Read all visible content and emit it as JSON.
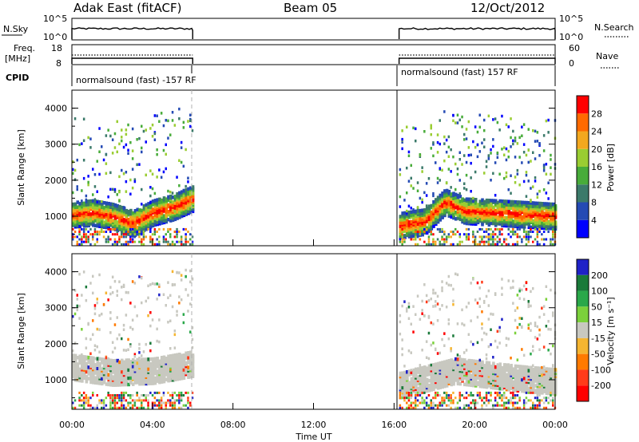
{
  "header": {
    "station": "Adak East (fitACF)",
    "beam": "Beam 05",
    "date": "12/Oct/2012"
  },
  "top_panels": {
    "nsky_label": "N.Sky",
    "nsky_ticks": [
      "10^5",
      "10^0"
    ],
    "nsearch_label": "N.Search",
    "nsearch_ticks": [
      "10^5",
      "10^0"
    ],
    "freq_label": "Freq.",
    "freq_unit": "[MHz]",
    "freq_ticks": [
      "18",
      "8"
    ],
    "nave_label": "Nave",
    "nave_ticks": [
      "60",
      "0"
    ],
    "cpid_label": "CPID",
    "cpid_segments": [
      {
        "text": "normalsound (fast) -157 RF",
        "start_h": 0,
        "end_h": 6
      },
      {
        "text": "normalsound (fast) 157 RF",
        "start_h": 16.25,
        "end_h": 24
      }
    ]
  },
  "x_axis": {
    "label": "Time UT",
    "ticks": [
      "00:00",
      "04:00",
      "08:00",
      "12:00",
      "16:00",
      "20:00",
      "00:00"
    ]
  },
  "chart_data": [
    {
      "type": "heatmap",
      "ylabel": "Slant Range [km]",
      "y_ticks": [
        "1000",
        "2000",
        "3000",
        "4000"
      ],
      "ylim": [
        180,
        4500
      ],
      "xlim": [
        0,
        24
      ],
      "data_windows_hours": [
        [
          0,
          6
        ],
        [
          16.25,
          24
        ]
      ],
      "colorbar": {
        "label": "Power [dB]",
        "ticks": [
          "4",
          "8",
          "12",
          "16",
          "20",
          "24",
          "28"
        ],
        "colors": [
          "#0000ff",
          "#244ab4",
          "#3b7a6a",
          "#48ac3a",
          "#9acd32",
          "#f3a81f",
          "#ff6a00",
          "#ff0000"
        ]
      },
      "backscatter_band": [
        {
          "hour": 0.0,
          "range_km": 1100
        },
        {
          "hour": 1.0,
          "range_km": 1150
        },
        {
          "hour": 2.0,
          "range_km": 1050
        },
        {
          "hour": 3.0,
          "range_km": 850
        },
        {
          "hour": 4.0,
          "range_km": 1150
        },
        {
          "hour": 5.0,
          "range_km": 1300
        },
        {
          "hour": 6.0,
          "range_km": 1550
        },
        {
          "hour": 16.3,
          "range_km": 800
        },
        {
          "hour": 17.5,
          "range_km": 900
        },
        {
          "hour": 18.5,
          "range_km": 1450
        },
        {
          "hour": 19.5,
          "range_km": 1200
        },
        {
          "hour": 21.0,
          "range_km": 1150
        },
        {
          "hour": 22.5,
          "range_km": 1100
        },
        {
          "hour": 24.0,
          "range_km": 1050
        }
      ]
    },
    {
      "type": "heatmap",
      "ylabel": "Slant Range [km]",
      "y_ticks": [
        "1000",
        "2000",
        "3000",
        "4000"
      ],
      "ylim": [
        180,
        4500
      ],
      "xlim": [
        0,
        24
      ],
      "data_windows_hours": [
        [
          0,
          6
        ],
        [
          16.25,
          24
        ]
      ],
      "colorbar": {
        "label": "Velocity [m s⁻¹]",
        "ticks": [
          "200",
          "100",
          "50",
          "15",
          "-15",
          "-50",
          "-100",
          "-200"
        ],
        "colors": [
          "#1f22c8",
          "#1a7a3a",
          "#2aa84a",
          "#7bd13b",
          "#c8c8c0",
          "#f5b531",
          "#ff7a00",
          "#ff3b1a",
          "#ff0000"
        ]
      },
      "backscatter_band": [
        {
          "hour": 0.0,
          "range_km": 1400
        },
        {
          "hour": 2.0,
          "range_km": 1250
        },
        {
          "hour": 4.0,
          "range_km": 1300
        },
        {
          "hour": 6.0,
          "range_km": 1500
        },
        {
          "hour": 16.3,
          "range_km": 900
        },
        {
          "hour": 19.0,
          "range_km": 1300
        },
        {
          "hour": 22.0,
          "range_km": 1100
        },
        {
          "hour": 24.0,
          "range_km": 1000
        }
      ]
    }
  ]
}
